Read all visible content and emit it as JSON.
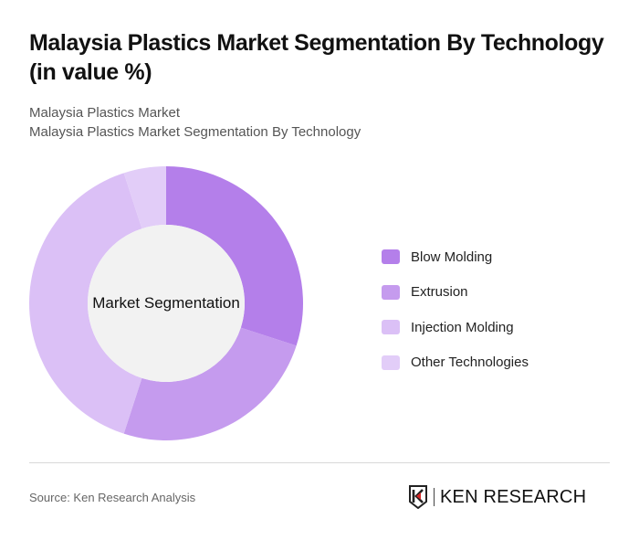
{
  "header": {
    "title": "Malaysia Plastics Market Segmentation By Technology (in value %)",
    "subtitle_line1": "Malaysia Plastics Market",
    "subtitle_line2": "Malaysia Plastics Market Segmentation By Technology"
  },
  "chart": {
    "center_label": "Market Segmentation",
    "inner_color": "#f2f2f2"
  },
  "legend": {
    "items": [
      {
        "label": "Blow Molding",
        "color": "#b47fea"
      },
      {
        "label": "Extrusion",
        "color": "#c59bee"
      },
      {
        "label": "Injection Molding",
        "color": "#dbc0f6"
      },
      {
        "label": "Other Technologies",
        "color": "#e2cdf8"
      }
    ]
  },
  "footer": {
    "source": "Source: Ken Research Analysis",
    "logo_text": "KEN RESEARCH",
    "logo_accent": "#d62828"
  },
  "chart_data": {
    "type": "pie",
    "subtype": "donut",
    "title": "Malaysia Plastics Market Segmentation By Technology (in value %)",
    "center_label": "Market Segmentation",
    "categories": [
      "Blow Molding",
      "Extrusion",
      "Injection Molding",
      "Other Technologies"
    ],
    "values": [
      30,
      25,
      40,
      5
    ],
    "colors": [
      "#b47fea",
      "#c59bee",
      "#dbc0f6",
      "#e2cdf8"
    ],
    "unit": "%",
    "legend_position": "right",
    "start_angle": "12 o'clock, clockwise"
  }
}
